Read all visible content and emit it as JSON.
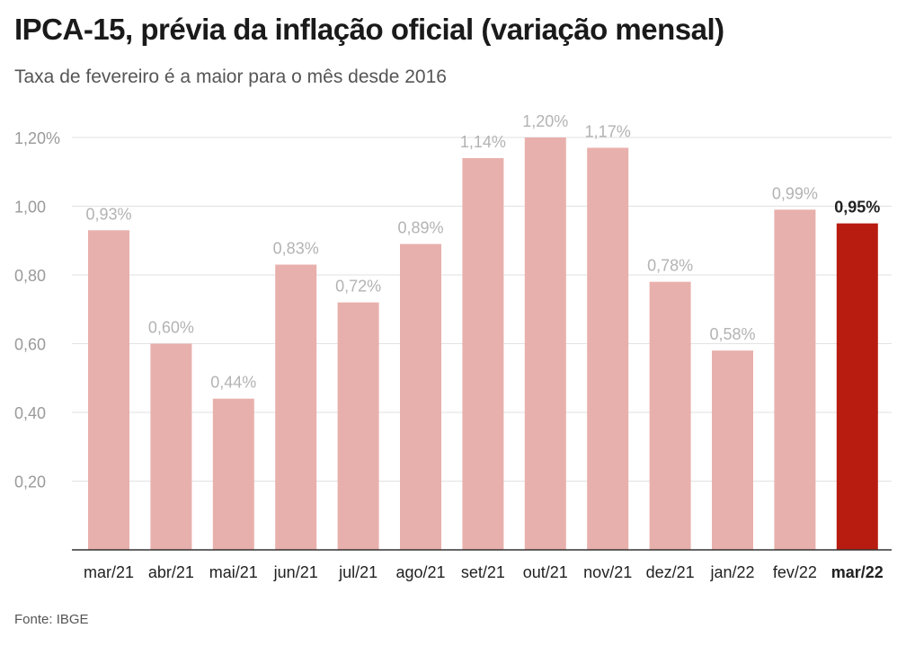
{
  "header": {
    "title": "IPCA-15, prévia da inflação oficial (variação mensal)",
    "subtitle": "Taxa de fevereiro é a maior para o mês desde 2016"
  },
  "footer": {
    "source": "Fonte: IBGE"
  },
  "colors": {
    "bar": "#e8b0ac",
    "highlight": "#b81c10",
    "grid": "#e2e2e2",
    "axis": "#333333"
  },
  "chart_data": {
    "type": "bar",
    "title": "IPCA-15, prévia da inflação oficial (variação mensal)",
    "subtitle": "Taxa de fevereiro é a maior para o mês desde 2016",
    "categories": [
      "mar/21",
      "abr/21",
      "mai/21",
      "jun/21",
      "jul/21",
      "ago/21",
      "set/21",
      "out/21",
      "nov/21",
      "dez/21",
      "jan/22",
      "fev/22",
      "mar/22"
    ],
    "values": [
      0.93,
      0.6,
      0.44,
      0.83,
      0.72,
      0.89,
      1.14,
      1.2,
      1.17,
      0.78,
      0.58,
      0.99,
      0.95
    ],
    "data_labels": [
      "0,93%",
      "0,60%",
      "0,44%",
      "0,83%",
      "0,72%",
      "0,89%",
      "1,14%",
      "1,20%",
      "1,17%",
      "0,78%",
      "0,58%",
      "0,99%",
      "0,95%"
    ],
    "highlight_index": 12,
    "ylim": [
      0,
      1.2
    ],
    "yticks": [
      0.2,
      0.4,
      0.6,
      0.8,
      1.0,
      1.2
    ],
    "ytick_labels": [
      "0,20",
      "0,40",
      "0,60",
      "0,80",
      "1,00",
      "1,20%"
    ],
    "grid": true,
    "legend": "none",
    "xlabel": "",
    "ylabel": ""
  }
}
